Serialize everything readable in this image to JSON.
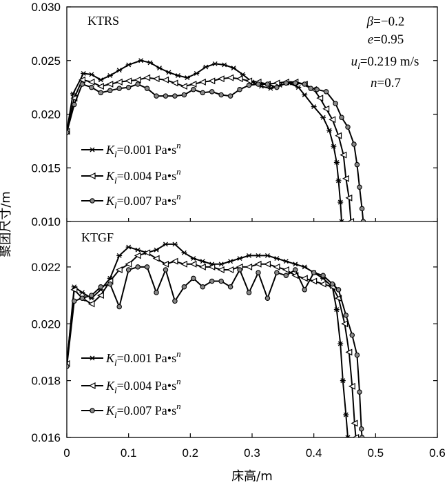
{
  "chart_data": {
    "type": "line",
    "xlabel": "床高/m",
    "ylabel": "聚团尺寸/m",
    "xlim": [
      0,
      0.6
    ],
    "xticks": [
      "0",
      "0.1",
      "0.2",
      "0.3",
      "0.4",
      "0.5",
      "0.6"
    ],
    "xtick_values": [
      0,
      0.1,
      0.2,
      0.3,
      0.4,
      0.5,
      0.6
    ],
    "legend_placement": "left",
    "legend_entries": [
      {
        "k": "K",
        "sub": "l",
        "rest": "=0.001 Pa•s",
        "sup": "n",
        "marker": "star"
      },
      {
        "k": "K",
        "sub": "l",
        "rest": "=0.004 Pa•s",
        "sup": "n",
        "marker": "triangle"
      },
      {
        "k": "K",
        "sub": "l",
        "rest": "=0.007 Pa•s",
        "sup": "n",
        "marker": "circle"
      }
    ],
    "annotations": [
      {
        "var": "β",
        "sub": "",
        "rest": "=−0.2"
      },
      {
        "var": "e",
        "sub": "",
        "rest": "=0.95"
      },
      {
        "var": "u",
        "sub": "l",
        "rest": "=0.219 m/s"
      },
      {
        "var": "n",
        "sub": "",
        "rest": "=0.7"
      }
    ],
    "panels": [
      {
        "title": "KTRS",
        "ylim": [
          0.01,
          0.03
        ],
        "yticks": [
          "0.010",
          "0.015",
          "0.020",
          "0.025",
          "0.030"
        ],
        "ytick_values": [
          0.01,
          0.015,
          0.02,
          0.025,
          0.03
        ],
        "series": [
          {
            "marker": "star",
            "points": [
              [
                0,
                0.0184
              ],
              [
                0.01,
                0.0219
              ],
              [
                0.027,
                0.0238
              ],
              [
                0.04,
                0.0237
              ],
              [
                0.055,
                0.0232
              ],
              [
                0.07,
                0.0236
              ],
              [
                0.085,
                0.0241
              ],
              [
                0.1,
                0.0246
              ],
              [
                0.12,
                0.025
              ],
              [
                0.135,
                0.0248
              ],
              [
                0.15,
                0.0243
              ],
              [
                0.165,
                0.0239
              ],
              [
                0.18,
                0.0236
              ],
              [
                0.195,
                0.0234
              ],
              [
                0.21,
                0.0238
              ],
              [
                0.225,
                0.0244
              ],
              [
                0.24,
                0.0247
              ],
              [
                0.255,
                0.0246
              ],
              [
                0.27,
                0.0243
              ],
              [
                0.285,
                0.0237
              ],
              [
                0.3,
                0.023
              ],
              [
                0.315,
                0.0226
              ],
              [
                0.33,
                0.0224
              ],
              [
                0.345,
                0.0227
              ],
              [
                0.36,
                0.0229
              ],
              [
                0.375,
                0.0225
              ],
              [
                0.385,
                0.0218
              ],
              [
                0.4,
                0.0207
              ],
              [
                0.415,
                0.0197
              ],
              [
                0.425,
                0.0185
              ],
              [
                0.432,
                0.017
              ],
              [
                0.437,
                0.0155
              ],
              [
                0.44,
                0.0138
              ],
              [
                0.443,
                0.0118
              ],
              [
                0.445,
                0.01
              ]
            ]
          },
          {
            "marker": "triangle",
            "points": [
              [
                0,
                0.0184
              ],
              [
                0.012,
                0.0215
              ],
              [
                0.025,
                0.0232
              ],
              [
                0.04,
                0.023
              ],
              [
                0.055,
                0.0226
              ],
              [
                0.07,
                0.0228
              ],
              [
                0.085,
                0.023
              ],
              [
                0.1,
                0.0231
              ],
              [
                0.115,
                0.0232
              ],
              [
                0.13,
                0.0234
              ],
              [
                0.145,
                0.0233
              ],
              [
                0.16,
                0.0232
              ],
              [
                0.175,
                0.0229
              ],
              [
                0.19,
                0.0226
              ],
              [
                0.205,
                0.0228
              ],
              [
                0.22,
                0.023
              ],
              [
                0.235,
                0.0231
              ],
              [
                0.25,
                0.0233
              ],
              [
                0.265,
                0.0234
              ],
              [
                0.28,
                0.0233
              ],
              [
                0.295,
                0.0231
              ],
              [
                0.31,
                0.023
              ],
              [
                0.325,
                0.0228
              ],
              [
                0.34,
                0.0229
              ],
              [
                0.355,
                0.023
              ],
              [
                0.37,
                0.023
              ],
              [
                0.385,
                0.0228
              ],
              [
                0.4,
                0.0223
              ],
              [
                0.41,
                0.0215
              ],
              [
                0.42,
                0.0205
              ],
              [
                0.43,
                0.0195
              ],
              [
                0.44,
                0.018
              ],
              [
                0.448,
                0.0162
              ],
              [
                0.452,
                0.014
              ],
              [
                0.457,
                0.0122
              ],
              [
                0.46,
                0.01
              ]
            ]
          },
          {
            "marker": "circle",
            "points": [
              [
                0,
                0.0183
              ],
              [
                0.012,
                0.0209
              ],
              [
                0.025,
                0.0228
              ],
              [
                0.04,
                0.0225
              ],
              [
                0.055,
                0.022
              ],
              [
                0.07,
                0.0222
              ],
              [
                0.085,
                0.0224
              ],
              [
                0.1,
                0.0225
              ],
              [
                0.115,
                0.0228
              ],
              [
                0.13,
                0.0224
              ],
              [
                0.145,
                0.0217
              ],
              [
                0.16,
                0.0217
              ],
              [
                0.175,
                0.0217
              ],
              [
                0.19,
                0.0218
              ],
              [
                0.205,
                0.0223
              ],
              [
                0.22,
                0.022
              ],
              [
                0.235,
                0.0221
              ],
              [
                0.25,
                0.0218
              ],
              [
                0.265,
                0.0217
              ],
              [
                0.28,
                0.0223
              ],
              [
                0.295,
                0.0227
              ],
              [
                0.31,
                0.0228
              ],
              [
                0.325,
                0.0228
              ],
              [
                0.34,
                0.0225
              ],
              [
                0.355,
                0.0229
              ],
              [
                0.37,
                0.0229
              ],
              [
                0.385,
                0.0228
              ],
              [
                0.395,
                0.0224
              ],
              [
                0.405,
                0.0223
              ],
              [
                0.42,
                0.0221
              ],
              [
                0.435,
                0.021
              ],
              [
                0.445,
                0.0197
              ],
              [
                0.455,
                0.0188
              ],
              [
                0.465,
                0.0172
              ],
              [
                0.47,
                0.0153
              ],
              [
                0.474,
                0.0132
              ],
              [
                0.478,
                0.0112
              ],
              [
                0.48,
                0.01
              ]
            ]
          }
        ]
      },
      {
        "title": "KTGF",
        "ylim": [
          0.016,
          0.0236
        ],
        "yticks": [
          "0.016",
          "0.018",
          "0.020",
          "0.022"
        ],
        "ytick_values": [
          0.016,
          0.018,
          0.02,
          0.022
        ],
        "series": [
          {
            "marker": "star",
            "points": [
              [
                0,
                0.0186
              ],
              [
                0.012,
                0.0213
              ],
              [
                0.025,
                0.0211
              ],
              [
                0.04,
                0.0209
              ],
              [
                0.055,
                0.0212
              ],
              [
                0.07,
                0.0216
              ],
              [
                0.085,
                0.0224
              ],
              [
                0.1,
                0.0227
              ],
              [
                0.115,
                0.0226
              ],
              [
                0.13,
                0.0225
              ],
              [
                0.145,
                0.0226
              ],
              [
                0.16,
                0.0228
              ],
              [
                0.175,
                0.0228
              ],
              [
                0.19,
                0.0225
              ],
              [
                0.205,
                0.0223
              ],
              [
                0.22,
                0.0222
              ],
              [
                0.235,
                0.0221
              ],
              [
                0.25,
                0.0221
              ],
              [
                0.265,
                0.0222
              ],
              [
                0.28,
                0.0223
              ],
              [
                0.295,
                0.0224
              ],
              [
                0.31,
                0.0224
              ],
              [
                0.325,
                0.0224
              ],
              [
                0.34,
                0.0223
              ],
              [
                0.355,
                0.0222
              ],
              [
                0.37,
                0.0221
              ],
              [
                0.385,
                0.022
              ],
              [
                0.4,
                0.0218
              ],
              [
                0.415,
                0.0216
              ],
              [
                0.43,
                0.0213
              ],
              [
                0.437,
                0.0205
              ],
              [
                0.443,
                0.0193
              ],
              [
                0.447,
                0.018
              ],
              [
                0.452,
                0.0168
              ],
              [
                0.455,
                0.016
              ]
            ]
          },
          {
            "marker": "triangle",
            "points": [
              [
                0,
                0.0186
              ],
              [
                0.012,
                0.0212
              ],
              [
                0.025,
                0.0209
              ],
              [
                0.04,
                0.0207
              ],
              [
                0.055,
                0.021
              ],
              [
                0.07,
                0.0215
              ],
              [
                0.085,
                0.0219
              ],
              [
                0.1,
                0.0221
              ],
              [
                0.115,
                0.0224
              ],
              [
                0.13,
                0.0225
              ],
              [
                0.145,
                0.0223
              ],
              [
                0.16,
                0.0221
              ],
              [
                0.175,
                0.0222
              ],
              [
                0.19,
                0.0221
              ],
              [
                0.205,
                0.0221
              ],
              [
                0.22,
                0.022
              ],
              [
                0.235,
                0.022
              ],
              [
                0.25,
                0.0219
              ],
              [
                0.265,
                0.0219
              ],
              [
                0.28,
                0.022
              ],
              [
                0.295,
                0.022
              ],
              [
                0.31,
                0.0221
              ],
              [
                0.325,
                0.0221
              ],
              [
                0.34,
                0.022
              ],
              [
                0.355,
                0.0219
              ],
              [
                0.37,
                0.0217
              ],
              [
                0.385,
                0.0216
              ],
              [
                0.4,
                0.0215
              ],
              [
                0.415,
                0.0214
              ],
              [
                0.43,
                0.0213
              ],
              [
                0.44,
                0.0209
              ],
              [
                0.45,
                0.02
              ],
              [
                0.457,
                0.019
              ],
              [
                0.462,
                0.0178
              ],
              [
                0.466,
                0.0165
              ],
              [
                0.468,
                0.016
              ]
            ]
          },
          {
            "marker": "circle",
            "points": [
              [
                0,
                0.0185
              ],
              [
                0.012,
                0.0208
              ],
              [
                0.025,
                0.0209
              ],
              [
                0.04,
                0.021
              ],
              [
                0.055,
                0.0213
              ],
              [
                0.07,
                0.0214
              ],
              [
                0.085,
                0.0206
              ],
              [
                0.1,
                0.0219
              ],
              [
                0.115,
                0.022
              ],
              [
                0.13,
                0.022
              ],
              [
                0.145,
                0.0211
              ],
              [
                0.16,
                0.0219
              ],
              [
                0.175,
                0.0208
              ],
              [
                0.19,
                0.0213
              ],
              [
                0.205,
                0.0216
              ],
              [
                0.22,
                0.0213
              ],
              [
                0.235,
                0.0215
              ],
              [
                0.25,
                0.0215
              ],
              [
                0.265,
                0.0213
              ],
              [
                0.28,
                0.0219
              ],
              [
                0.295,
                0.0211
              ],
              [
                0.31,
                0.0218
              ],
              [
                0.325,
                0.0209
              ],
              [
                0.34,
                0.0218
              ],
              [
                0.355,
                0.0217
              ],
              [
                0.37,
                0.0219
              ],
              [
                0.385,
                0.0212
              ],
              [
                0.4,
                0.0218
              ],
              [
                0.415,
                0.0217
              ],
              [
                0.43,
                0.0214
              ],
              [
                0.44,
                0.0212
              ],
              [
                0.452,
                0.0203
              ],
              [
                0.462,
                0.0196
              ],
              [
                0.47,
                0.0189
              ],
              [
                0.474,
                0.0176
              ],
              [
                0.477,
                0.0163
              ],
              [
                0.478,
                0.016
              ]
            ]
          }
        ]
      }
    ]
  }
}
